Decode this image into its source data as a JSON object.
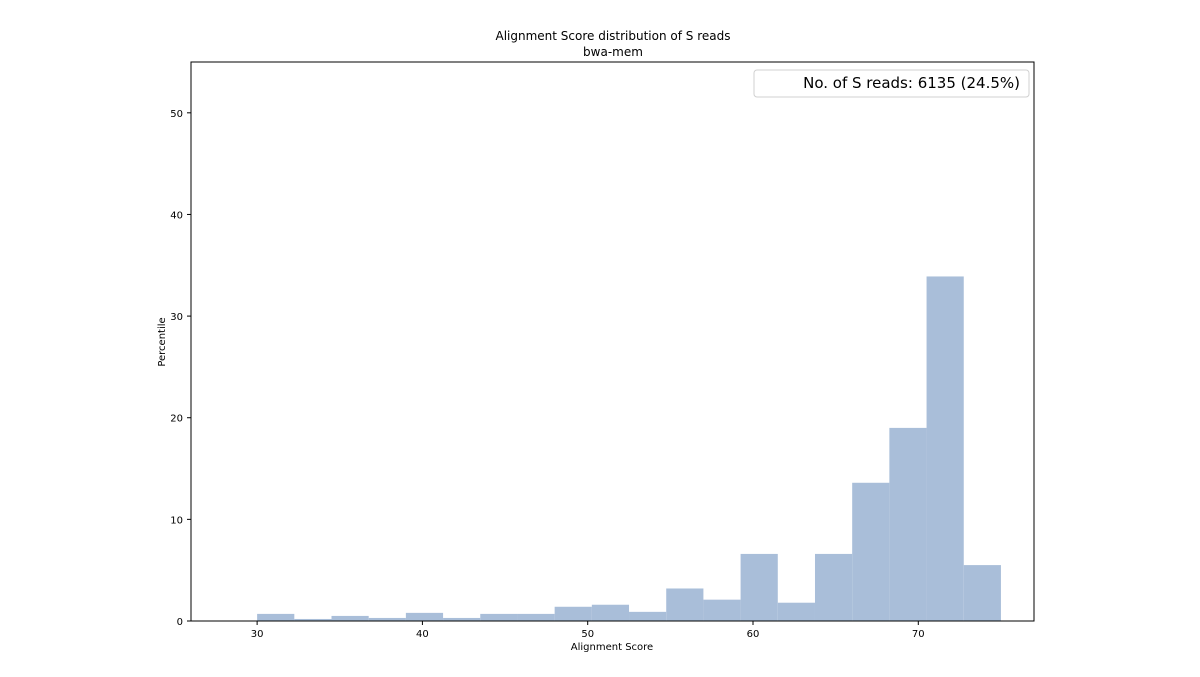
{
  "chart_data": {
    "type": "bar",
    "title": "Alignment Score distribution of S reads",
    "subtitle": "bwa-mem",
    "xlabel": "Alignment Score",
    "ylabel": "Percentile",
    "xlim": [
      26,
      77
    ],
    "ylim": [
      0,
      55
    ],
    "xticks": [
      30,
      40,
      50,
      60,
      70
    ],
    "yticks": [
      0,
      10,
      20,
      30,
      40,
      50
    ],
    "bin_edges": [
      30,
      32.25,
      34.5,
      36.75,
      39,
      41.25,
      43.5,
      45.75,
      48,
      50.25,
      52.5,
      54.75,
      57,
      59.25,
      61.5,
      63.75,
      66,
      68.25,
      70.5,
      72.75,
      75
    ],
    "values": [
      0.7,
      0.2,
      0.5,
      0.3,
      0.8,
      0.3,
      0.7,
      0.7,
      1.4,
      1.6,
      0.9,
      3.2,
      2.1,
      6.6,
      1.8,
      6.6,
      13.6,
      19.0,
      33.9,
      5.5
    ],
    "bar_color": "#a9bed9",
    "grid": false,
    "legend": {
      "text": "No. of S reads: 6135 (24.5%)",
      "placement": "top-right"
    }
  }
}
